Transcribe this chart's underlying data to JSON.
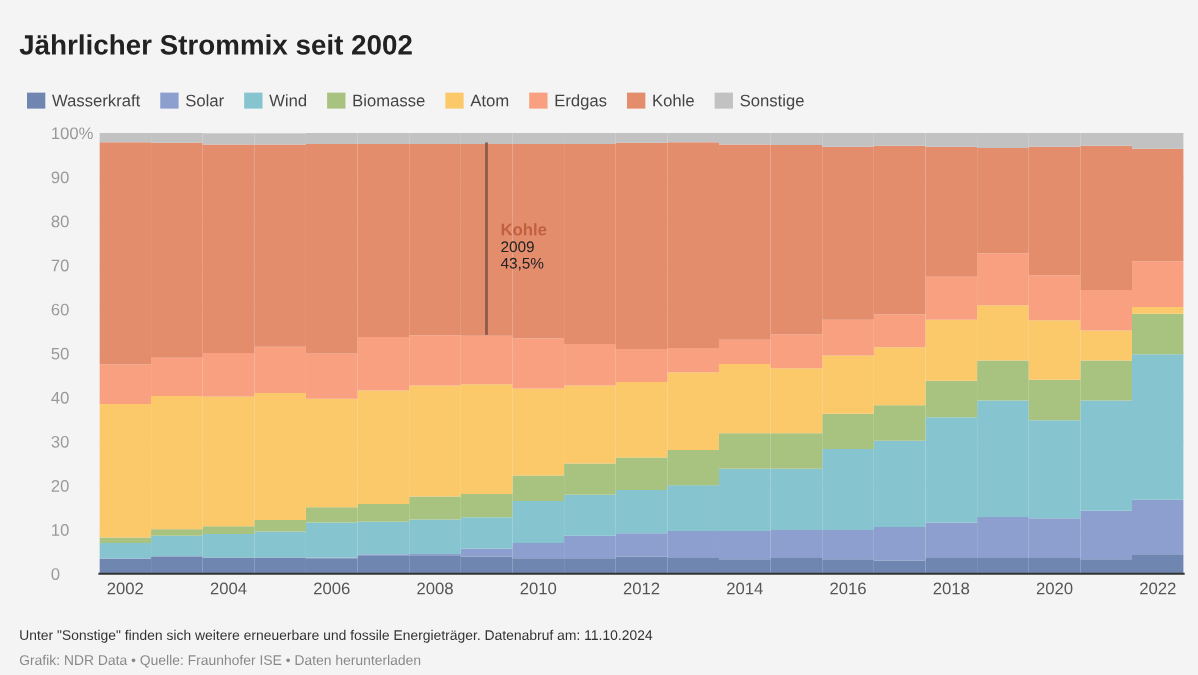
{
  "chart_data": {
    "type": "bar",
    "stacked": true,
    "title": "Jährlicher Strommix seit 2002",
    "x": [
      2002,
      2003,
      2004,
      2005,
      2006,
      2007,
      2008,
      2009,
      2010,
      2011,
      2012,
      2013,
      2014,
      2015,
      2016,
      2017,
      2018,
      2019,
      2020,
      2021,
      2022
    ],
    "series": [
      {
        "name": "Wasserkraft",
        "color": "#6e86b0",
        "values": [
          3.4,
          3.9,
          3.7,
          3.7,
          3.5,
          4.2,
          4.2,
          3.9,
          3.5,
          3.5,
          3.9,
          3.6,
          3.3,
          3.6,
          3.3,
          3.0,
          3.6,
          3.6,
          3.6,
          3.3,
          4.4
        ]
      },
      {
        "name": "Solar",
        "color": "#8c9fce",
        "values": [
          0.1,
          0.1,
          null,
          null,
          0.2,
          0.2,
          0.3,
          1.8,
          3.5,
          5.1,
          5.3,
          6.1,
          6.4,
          6.3,
          6.6,
          7.6,
          8.0,
          9.3,
          9.0,
          11.0,
          12.4
        ]
      },
      {
        "name": "Wind",
        "color": "#86c5cf",
        "values": [
          3.5,
          4.6,
          5.3,
          5.9,
          7.9,
          7.4,
          7.8,
          7.1,
          9.5,
          9.3,
          9.8,
          10.4,
          14.1,
          13.9,
          18.4,
          19.6,
          23.9,
          26.4,
          22.2,
          25.0,
          33.0
        ]
      },
      {
        "name": "Biomasse",
        "color": "#a8c280",
        "values": [
          1.2,
          1.5,
          1.8,
          2.6,
          3.5,
          4.0,
          5.2,
          5.3,
          5.8,
          7.1,
          7.4,
          8.0,
          8.1,
          8.1,
          8.0,
          8.0,
          8.3,
          9.1,
          9.2,
          9.1,
          9.2
        ]
      },
      {
        "name": "Atom",
        "color": "#fcc96a",
        "values": [
          30.3,
          30.2,
          29.4,
          28.8,
          24.6,
          25.8,
          25.2,
          24.9,
          19.7,
          17.7,
          17.1,
          17.6,
          15.7,
          14.7,
          13.2,
          13.2,
          13.8,
          12.5,
          13.5,
          6.8,
          1.5
        ]
      },
      {
        "name": "Erdgas",
        "color": "#f8a07f",
        "values": [
          9.0,
          8.7,
          9.9,
          10.5,
          10.3,
          12.1,
          11.4,
          11.0,
          11.4,
          9.4,
          7.5,
          5.5,
          5.5,
          7.7,
          8.1,
          7.5,
          9.8,
          11.8,
          10.2,
          9.2,
          10.4
        ]
      },
      {
        "name": "Kohle",
        "color": "#e38d6d",
        "values": [
          50.4,
          48.8,
          47.3,
          45.9,
          47.5,
          43.8,
          43.4,
          43.5,
          44.1,
          45.4,
          46.8,
          46.7,
          44.3,
          43.0,
          39.3,
          38.2,
          29.5,
          23.9,
          29.2,
          32.7,
          25.5
        ]
      },
      {
        "name": "Sonstige",
        "color": "#c2c2c2",
        "values": [
          2.1,
          2.2,
          2.5,
          2.5,
          2.5,
          2.5,
          2.5,
          2.5,
          2.5,
          2.5,
          2.2,
          2.1,
          2.6,
          2.7,
          3.1,
          2.9,
          3.1,
          3.4,
          3.1,
          2.9,
          3.6
        ]
      }
    ],
    "xlim": [
      2001.5,
      2022.5
    ],
    "xticks": [
      2002,
      2004,
      2006,
      2008,
      2010,
      2012,
      2014,
      2016,
      2018,
      2020,
      2022
    ],
    "ylim": [
      0,
      100
    ],
    "yticks": [
      0,
      10,
      20,
      30,
      40,
      50,
      60,
      70,
      80,
      90,
      {
        "value": 100,
        "label": "100%"
      }
    ],
    "grid": "y",
    "legend": "top left",
    "annotations": [
      "Kohle\n2009\n43,5%",
      "Unter \"Sonstige\" finden sich weitere erneuerbare und fossile Energieträger. Datenabruf am: 11.10.2024",
      "Grafik: NDR Data • Quelle: Fraunhofer ISE • Daten herunterladen"
    ]
  }
}
